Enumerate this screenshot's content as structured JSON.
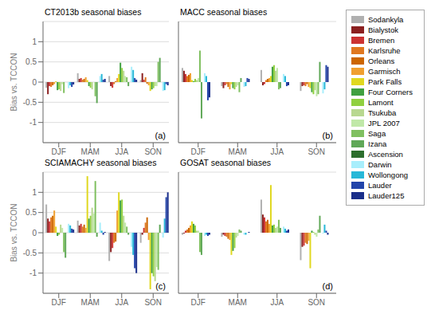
{
  "chart_data": [
    {
      "type": "bar",
      "title": "CT2013b seasonal biases",
      "ylabel": "Bias vs. TCCON",
      "annotations": [
        "(a)"
      ],
      "categories": [
        "DJF",
        "MAM",
        "JJA",
        "SON"
      ],
      "ylim": [
        -1.5,
        1.5
      ],
      "yticks": [
        -1.0,
        -0.5,
        0.0,
        0.5,
        1.0
      ],
      "grid": true,
      "legend": "right",
      "series": [
        {
          "name": "Sodankyla",
          "color": "#b0b0b0",
          "values": [
            -0.14,
            0.22,
            0.15,
            0.05
          ]
        },
        {
          "name": "Bialystok",
          "color": "#8b2020",
          "values": [
            -0.3,
            0.08,
            -0.1,
            0.22
          ]
        },
        {
          "name": "Bremen",
          "color": "#cc3333",
          "values": [
            -0.1,
            0.1,
            -0.14,
            0.06
          ]
        },
        {
          "name": "Karlsruhe",
          "color": "#e07820",
          "values": [
            -0.12,
            0.06,
            -0.05,
            0.12
          ]
        },
        {
          "name": "Orleans",
          "color": "#cc6600",
          "values": [
            -0.08,
            0.08,
            0.02,
            -0.04
          ]
        },
        {
          "name": "Garmisch",
          "color": "#f0a030",
          "values": [
            -0.05,
            0.12,
            0.1,
            -0.08
          ]
        },
        {
          "name": "Park Falls",
          "color": "#e0d820",
          "values": [
            0.02,
            0.05,
            0.2,
            -0.22
          ]
        },
        {
          "name": "Four Corners",
          "color": "#40a040",
          "values": [
            -0.2,
            -0.1,
            0.48,
            -0.18
          ]
        },
        {
          "name": "Lamont",
          "color": "#90d040",
          "values": [
            -0.18,
            -0.14,
            0.35,
            -0.15
          ]
        },
        {
          "name": "Tsukuba",
          "color": "#b8d890",
          "values": [
            -0.22,
            -0.18,
            0.28,
            -0.1
          ]
        },
        {
          "name": "JPL 2007",
          "color": "#c0e8a8",
          "values": [
            -0.05,
            0.0,
            0.15,
            -0.1
          ]
        },
        {
          "name": "Saga",
          "color": "#80c060",
          "values": [
            -0.27,
            -0.35,
            0.12,
            0.5
          ]
        },
        {
          "name": "Izana",
          "color": "#60a858",
          "values": [
            0.0,
            -0.52,
            -0.1,
            0.6
          ]
        },
        {
          "name": "Ascension",
          "color": "#2d6e2d",
          "values": [
            0.0,
            0.0,
            0.0,
            0.0
          ]
        },
        {
          "name": "Darwin",
          "color": "#a8eefc",
          "values": [
            -0.15,
            0.15,
            0.38,
            -0.22
          ]
        },
        {
          "name": "Wollongong",
          "color": "#28b8d8",
          "values": [
            -0.08,
            0.2,
            0.3,
            -0.2
          ]
        },
        {
          "name": "Lauder",
          "color": "#2244aa",
          "values": [
            -0.12,
            0.06,
            0.1,
            -0.05
          ]
        },
        {
          "name": "Lauder125",
          "color": "#1a2e8a",
          "values": [
            -0.06,
            0.08,
            0.06,
            -0.08
          ]
        }
      ]
    },
    {
      "type": "bar",
      "title": "MACC seasonal biases",
      "annotations": [
        "(b)"
      ],
      "categories": [
        "DJF",
        "MAM",
        "JJA",
        "SON"
      ],
      "ylim": [
        -1.5,
        1.5
      ],
      "yticks": [
        -1.0,
        -0.5,
        0.0,
        0.5,
        1.0
      ],
      "grid": true,
      "tick_labels": "x",
      "series": [
        {
          "name": "Sodankyla",
          "color": "#b0b0b0",
          "values": [
            0.35,
            -0.1,
            0.3,
            -0.22
          ]
        },
        {
          "name": "Bialystok",
          "color": "#8b2020",
          "values": [
            0.28,
            -0.15,
            -0.08,
            -0.1
          ]
        },
        {
          "name": "Bremen",
          "color": "#cc3333",
          "values": [
            0.2,
            -0.08,
            -0.05,
            -0.08
          ]
        },
        {
          "name": "Karlsruhe",
          "color": "#e07820",
          "values": [
            0.15,
            -0.05,
            0.05,
            -0.1
          ]
        },
        {
          "name": "Orleans",
          "color": "#cc6600",
          "values": [
            0.18,
            -0.12,
            0.08,
            -0.05
          ]
        },
        {
          "name": "Garmisch",
          "color": "#f0a030",
          "values": [
            0.22,
            -0.18,
            0.1,
            -0.12
          ]
        },
        {
          "name": "Park Falls",
          "color": "#e0d820",
          "values": [
            0.05,
            -0.05,
            0.15,
            -0.15
          ]
        },
        {
          "name": "Four Corners",
          "color": "#40a040",
          "values": [
            0.02,
            -0.15,
            0.38,
            -0.25
          ]
        },
        {
          "name": "Lamont",
          "color": "#90d040",
          "values": [
            0.08,
            -0.18,
            0.42,
            -0.3
          ]
        },
        {
          "name": "Tsukuba",
          "color": "#b8d890",
          "values": [
            0.05,
            -0.12,
            0.28,
            -0.2
          ]
        },
        {
          "name": "JPL 2007",
          "color": "#c0e8a8",
          "values": [
            0.1,
            -0.08,
            0.35,
            -0.35
          ]
        },
        {
          "name": "Saga",
          "color": "#80c060",
          "values": [
            0.78,
            -0.25,
            -0.18,
            -0.3
          ]
        },
        {
          "name": "Izana",
          "color": "#60a858",
          "values": [
            -0.9,
            0.1,
            -0.15,
            0.5
          ]
        },
        {
          "name": "Ascension",
          "color": "#2d6e2d",
          "values": [
            0.0,
            0.0,
            0.0,
            0.0
          ]
        },
        {
          "name": "Darwin",
          "color": "#a8eefc",
          "values": [
            0.22,
            -0.12,
            0.2,
            -0.28
          ]
        },
        {
          "name": "Wollongong",
          "color": "#28b8d8",
          "values": [
            0.15,
            -0.1,
            0.15,
            -0.18
          ]
        },
        {
          "name": "Lauder",
          "color": "#2244aa",
          "values": [
            -0.45,
            0.1,
            -0.1,
            0.42
          ]
        },
        {
          "name": "Lauder125",
          "color": "#1a2e8a",
          "values": [
            -0.38,
            0.08,
            -0.08,
            0.38
          ]
        }
      ]
    },
    {
      "type": "bar",
      "title": "SCIAMACHY seasonal biases",
      "ylabel": "Bias vs. TCCON",
      "annotations": [
        "(c)"
      ],
      "categories": [
        "DJF",
        "MAM",
        "JJA",
        "SON"
      ],
      "ylim": [
        -1.5,
        1.5
      ],
      "yticks": [
        -1.0,
        -0.5,
        0.0,
        0.5,
        1.0
      ],
      "grid": true,
      "series": [
        {
          "name": "Sodankyla",
          "color": "#b0b0b0",
          "values": [
            0.7,
            0.3,
            -0.7,
            -0.25
          ]
        },
        {
          "name": "Bialystok",
          "color": "#8b2020",
          "values": [
            0.35,
            0.18,
            -0.48,
            -0.05
          ]
        },
        {
          "name": "Bremen",
          "color": "#cc3333",
          "values": [
            0.28,
            0.22,
            -0.38,
            0.12
          ]
        },
        {
          "name": "Karlsruhe",
          "color": "#e07820",
          "values": [
            0.38,
            0.15,
            -0.25,
            0.25
          ]
        },
        {
          "name": "Orleans",
          "color": "#cc6600",
          "values": [
            0.42,
            0.2,
            -0.22,
            0.38
          ]
        },
        {
          "name": "Garmisch",
          "color": "#f0a030",
          "values": [
            0.55,
            0.12,
            0.55,
            -0.18
          ]
        },
        {
          "name": "Park Falls",
          "color": "#e0d820",
          "values": [
            0.15,
            1.4,
            1.0,
            -1.4
          ]
        },
        {
          "name": "Four Corners",
          "color": "#40a040",
          "values": [
            -0.08,
            0.35,
            0.8,
            -1.0
          ]
        },
        {
          "name": "Lamont",
          "color": "#90d040",
          "values": [
            -0.05,
            0.42,
            0.82,
            -1.08
          ]
        },
        {
          "name": "Tsukuba",
          "color": "#b8d890",
          "values": [
            0.2,
            0.62,
            0.42,
            -1.2
          ]
        },
        {
          "name": "JPL 2007",
          "color": "#c0e8a8",
          "values": [
            0.12,
            0.48,
            0.25,
            -0.85
          ]
        },
        {
          "name": "Saga",
          "color": "#80c060",
          "values": [
            -0.48,
            1.28,
            0.15,
            -0.92
          ]
        },
        {
          "name": "Izana",
          "color": "#60a858",
          "values": [
            -0.62,
            -0.1,
            -0.05,
            0.2
          ]
        },
        {
          "name": "Ascension",
          "color": "#2d6e2d",
          "values": [
            0.0,
            0.0,
            0.0,
            0.0
          ]
        },
        {
          "name": "Darwin",
          "color": "#a8eefc",
          "values": [
            0.22,
            0.25,
            -0.35,
            -0.12
          ]
        },
        {
          "name": "Wollongong",
          "color": "#28b8d8",
          "values": [
            0.18,
            0.05,
            -0.55,
            0.35
          ]
        },
        {
          "name": "Lauder",
          "color": "#2244aa",
          "values": [
            0.1,
            -0.05,
            -0.88,
            0.88
          ]
        },
        {
          "name": "Lauder125",
          "color": "#1a2e8a",
          "values": [
            0.08,
            0.02,
            -1.0,
            1.0
          ]
        }
      ]
    },
    {
      "type": "bar",
      "title": "GOSAT seasonal biases",
      "annotations": [
        "(d)"
      ],
      "categories": [
        "DJF",
        "MAM",
        "JJA",
        "SON"
      ],
      "ylim": [
        -1.5,
        1.5
      ],
      "yticks": [
        -1.0,
        -0.5,
        0.0,
        0.5,
        1.0
      ],
      "grid": true,
      "tick_labels": "x",
      "series": [
        {
          "name": "Sodankyla",
          "color": "#b0b0b0",
          "values": [
            -0.05,
            -0.1,
            0.82,
            -0.68
          ]
        },
        {
          "name": "Bialystok",
          "color": "#8b2020",
          "values": [
            -0.02,
            -0.05,
            0.45,
            -0.35
          ]
        },
        {
          "name": "Bremen",
          "color": "#cc3333",
          "values": [
            0.05,
            -0.08,
            0.38,
            -0.32
          ]
        },
        {
          "name": "Karlsruhe",
          "color": "#e07820",
          "values": [
            0.08,
            -0.1,
            0.28,
            -0.25
          ]
        },
        {
          "name": "Orleans",
          "color": "#cc6600",
          "values": [
            0.12,
            -0.15,
            0.32,
            -0.28
          ]
        },
        {
          "name": "Garmisch",
          "color": "#f0a030",
          "values": [
            0.18,
            -0.18,
            0.22,
            -0.2
          ]
        },
        {
          "name": "Park Falls",
          "color": "#e0d820",
          "values": [
            0.28,
            -0.55,
            1.18,
            -0.88
          ]
        },
        {
          "name": "Four Corners",
          "color": "#40a040",
          "values": [
            0.22,
            -0.45,
            0.18,
            0.05
          ]
        },
        {
          "name": "Lamont",
          "color": "#90d040",
          "values": [
            0.18,
            -0.38,
            0.2,
            0.02
          ]
        },
        {
          "name": "Tsukuba",
          "color": "#b8d890",
          "values": [
            0.05,
            -0.12,
            0.12,
            -0.05
          ]
        },
        {
          "name": "JPL 2007",
          "color": "#c0e8a8",
          "values": [
            0.05,
            -0.08,
            0.15,
            -0.1
          ]
        },
        {
          "name": "Saga",
          "color": "#80c060",
          "values": [
            -0.48,
            0.08,
            0.32,
            0.08
          ]
        },
        {
          "name": "Izana",
          "color": "#60a858",
          "values": [
            -0.55,
            0.05,
            0.12,
            0.42
          ]
        },
        {
          "name": "Ascension",
          "color": "#2d6e2d",
          "values": [
            0.0,
            0.0,
            0.0,
            0.0
          ]
        },
        {
          "name": "Darwin",
          "color": "#a8eefc",
          "values": [
            -0.08,
            -0.05,
            0.15,
            -0.02
          ]
        },
        {
          "name": "Wollongong",
          "color": "#28b8d8",
          "values": [
            -0.05,
            -0.05,
            0.1,
            0.2
          ]
        },
        {
          "name": "Lauder",
          "color": "#2244aa",
          "values": [
            -0.08,
            0.0,
            0.05,
            0.05
          ]
        },
        {
          "name": "Lauder125",
          "color": "#1a2e8a",
          "values": [
            -0.05,
            0.02,
            0.08,
            -0.05
          ]
        }
      ]
    }
  ]
}
